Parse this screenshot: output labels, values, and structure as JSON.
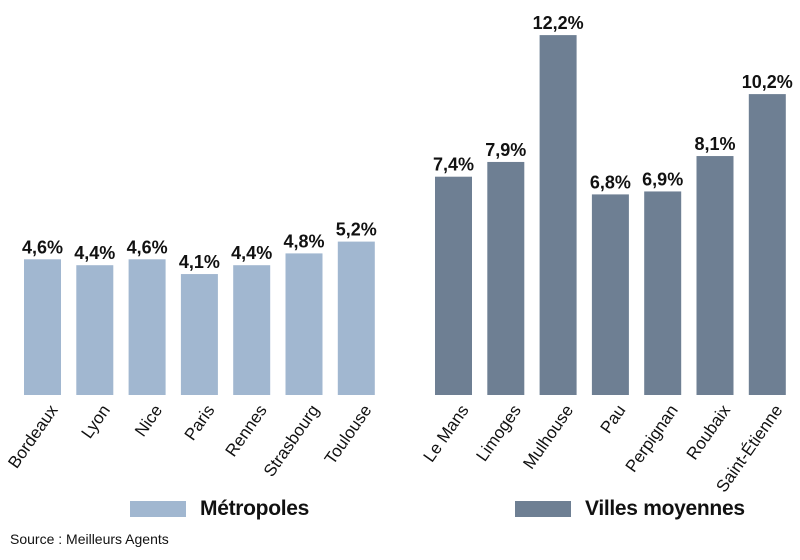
{
  "chart_data": {
    "type": "bar",
    "ylim": [
      0,
      13
    ],
    "grid": false,
    "legend_placement": "bottom",
    "series": [
      {
        "name": "Métropoles",
        "color": "#a1b7d0",
        "categories": [
          "Bordeaux",
          "Lyon",
          "Nice",
          "Paris",
          "Rennes",
          "Strasbourg",
          "Toulouse"
        ],
        "values": [
          4.6,
          4.4,
          4.6,
          4.1,
          4.4,
          4.8,
          5.2
        ],
        "labels": [
          "4,6%",
          "4,4%",
          "4,6%",
          "4,1%",
          "4,4%",
          "4,8%",
          "5,2%"
        ]
      },
      {
        "name": "Villes moyennes",
        "color": "#6e7f93",
        "categories": [
          "Le Mans",
          "Limoges",
          "Mulhouse",
          "Pau",
          "Perpignan",
          "Roubaix",
          "Saint-Étienne"
        ],
        "values": [
          7.4,
          7.9,
          12.2,
          6.8,
          6.9,
          8.1,
          10.2
        ],
        "labels": [
          "7,4%",
          "7,9%",
          "12,2%",
          "6,8%",
          "6,9%",
          "8,1%",
          "10,2%"
        ]
      }
    ]
  },
  "legend": [
    {
      "label": "Métropoles",
      "color": "#a1b7d0"
    },
    {
      "label": "Villes moyennes",
      "color": "#6e7f93"
    }
  ],
  "source": "Source : Meilleurs Agents"
}
